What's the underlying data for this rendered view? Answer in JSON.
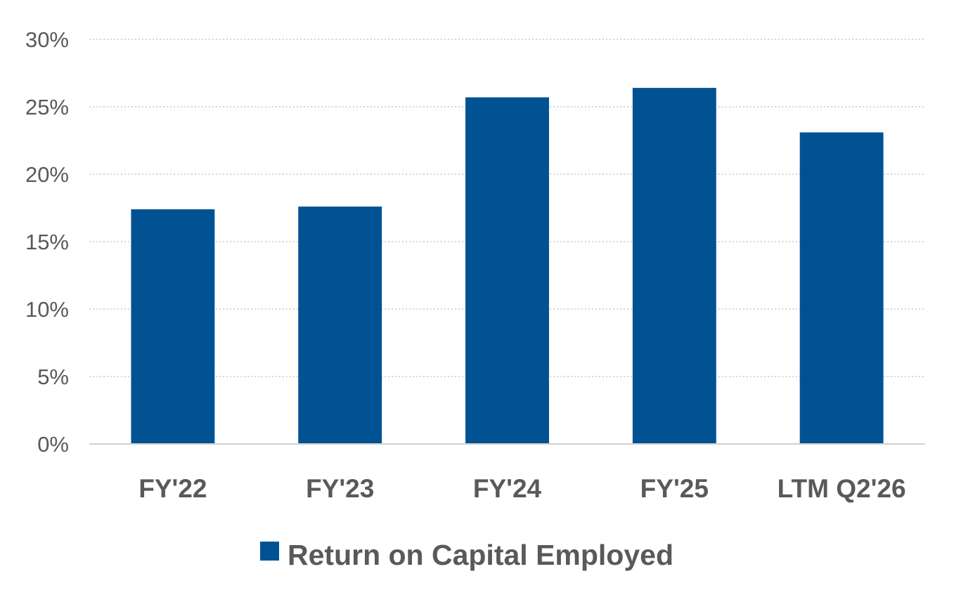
{
  "chart_data": {
    "type": "bar",
    "categories": [
      "FY'22",
      "FY'23",
      "FY'24",
      "FY'25",
      "LTM Q2'26"
    ],
    "series": [
      {
        "name": "Return on Capital Employed",
        "values": [
          17.4,
          17.6,
          25.7,
          26.4,
          23.1
        ],
        "color": "#005293"
      }
    ],
    "yticks": [
      "0%",
      "5%",
      "10%",
      "15%",
      "20%",
      "25%",
      "30%"
    ],
    "ylim": [
      0,
      30
    ],
    "ystep": 5,
    "grid": true,
    "legend_position": "bottom"
  }
}
